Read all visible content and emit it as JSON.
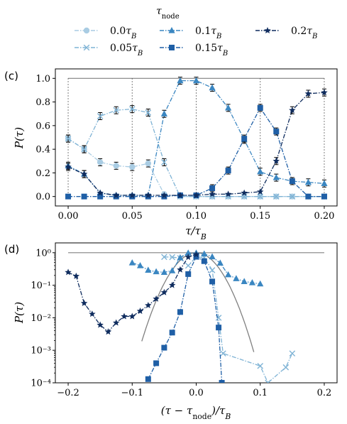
{
  "legend": {
    "title": "τ_node",
    "entries": [
      "0.0τ_B",
      "0.05τ_B",
      "0.1τ_B",
      "0.15τ_B",
      "0.2τ_B"
    ]
  },
  "chart_data": [
    {
      "type": "line",
      "panel_label": "(c)",
      "xlabel": "τ/τ_B",
      "ylabel": "P(τ)",
      "xlim": [
        -0.01,
        0.21
      ],
      "ylim": [
        -0.08,
        1.08
      ],
      "xticks": [
        "0.00",
        "0.05",
        "0.10",
        "0.15",
        "0.20"
      ],
      "yticks": [
        "0.0",
        "0.2",
        "0.4",
        "0.6",
        "0.8",
        "1.0"
      ],
      "x": [
        0,
        0.0125,
        0.025,
        0.0375,
        0.05,
        0.0625,
        0.075,
        0.0875,
        0.1,
        0.1125,
        0.125,
        0.1375,
        0.15,
        0.1625,
        0.175,
        0.1875,
        0.2
      ],
      "series": [
        {
          "name": "0.0τ_B",
          "color": "#a9cce3",
          "marker": "circle",
          "values": [
            0.49,
            0.4,
            0.29,
            0.26,
            0.25,
            0.28,
            0.02,
            0.0,
            0.0,
            0.0,
            0.0,
            0.0,
            0.0,
            0.0,
            0.0,
            0.0,
            0.0
          ]
        },
        {
          "name": "0.05τ_B",
          "color": "#7fb3d5",
          "marker": "x",
          "values": [
            0.49,
            0.4,
            0.68,
            0.73,
            0.74,
            0.71,
            0.29,
            0.0,
            0.0,
            0.0,
            0.0,
            0.0,
            0.0,
            0.0,
            0.0,
            0.0,
            0.0
          ]
        },
        {
          "name": "0.1τ_B",
          "color": "#3a86c1",
          "marker": "triangle",
          "values": [
            0.26,
            0.19,
            0.03,
            0.01,
            0.01,
            0.01,
            0.7,
            0.98,
            0.98,
            0.92,
            0.75,
            0.48,
            0.21,
            0.16,
            0.13,
            0.12,
            0.11
          ]
        },
        {
          "name": "0.15τ_B",
          "color": "#1f5fa6",
          "marker": "square",
          "values": [
            0.0,
            0.0,
            0.0,
            0.0,
            0.0,
            0.0,
            0.0,
            0.01,
            0.01,
            0.07,
            0.22,
            0.49,
            0.75,
            0.55,
            0.13,
            0.0,
            0.0
          ]
        },
        {
          "name": "0.2τ_B",
          "color": "#0f2c5e",
          "marker": "star",
          "values": [
            0.25,
            0.19,
            0.03,
            0.01,
            0.01,
            0.01,
            0.01,
            0.01,
            0.01,
            0.02,
            0.02,
            0.03,
            0.04,
            0.3,
            0.73,
            0.87,
            0.88
          ]
        }
      ],
      "reference_line": {
        "color": "#808080",
        "level": 1.0,
        "dotted_x": [
          0.0,
          0.05,
          0.1,
          0.15,
          0.2
        ]
      }
    },
    {
      "type": "line",
      "panel_label": "(d)",
      "xlabel": "(τ − τ_node)/τ_B",
      "ylabel": "P(τ)",
      "yscale": "log",
      "xlim": [
        -0.22,
        0.22
      ],
      "ylim": [
        0.0001,
        2.0
      ],
      "xticks": [
        "−0.2",
        "−0.1",
        "0.0",
        "0.1",
        "0.2"
      ],
      "yticks": [
        "10⁻⁴",
        "10⁻³",
        "10⁻²",
        "10⁻¹",
        "10⁰"
      ],
      "series": [
        {
          "name": "0.05τ_B",
          "color": "#7fb3d5",
          "marker": "x",
          "points": [
            [
              -0.05,
              0.74
            ],
            [
              -0.0375,
              0.73
            ],
            [
              -0.025,
              0.68
            ],
            [
              -0.0125,
              0.4
            ],
            [
              0.0,
              0.74
            ],
            [
              0.0125,
              0.71
            ],
            [
              0.025,
              0.29
            ],
            [
              0.035,
              0.01
            ],
            [
              0.042,
              0.0008
            ],
            [
              0.1,
              0.00033
            ],
            [
              0.112,
              0.0001
            ],
            [
              0.14,
              0.0003
            ],
            [
              0.15,
              0.0008
            ]
          ]
        },
        {
          "name": "0.1τ_B",
          "color": "#3a86c1",
          "marker": "triangle",
          "points": [
            [
              -0.1,
              0.49
            ],
            [
              -0.0875,
              0.4
            ],
            [
              -0.075,
              0.29
            ],
            [
              -0.0625,
              0.26
            ],
            [
              -0.05,
              0.25
            ],
            [
              -0.0375,
              0.28
            ],
            [
              -0.025,
              0.7
            ],
            [
              -0.0125,
              0.98
            ],
            [
              0.0,
              0.98
            ],
            [
              0.0125,
              0.92
            ],
            [
              0.025,
              0.75
            ],
            [
              0.0375,
              0.48
            ],
            [
              0.05,
              0.21
            ],
            [
              0.0625,
              0.16
            ],
            [
              0.075,
              0.13
            ],
            [
              0.0875,
              0.12
            ],
            [
              0.1,
              0.11
            ]
          ]
        },
        {
          "name": "0.15τ_B",
          "color": "#1f5fa6",
          "marker": "square",
          "points": [
            [
              -0.075,
              0.00013
            ],
            [
              -0.0625,
              0.0004
            ],
            [
              -0.05,
              0.0012
            ],
            [
              -0.0375,
              0.0035
            ],
            [
              -0.025,
              0.015
            ],
            [
              -0.0125,
              0.22
            ],
            [
              0.0,
              0.75
            ],
            [
              0.0125,
              0.55
            ],
            [
              0.025,
              0.13
            ],
            [
              0.035,
              0.005
            ],
            [
              0.04,
              0.0001
            ]
          ]
        },
        {
          "name": "0.2τ_B",
          "color": "#0f2c5e",
          "marker": "star",
          "points": [
            [
              -0.2,
              0.25
            ],
            [
              -0.1875,
              0.19
            ],
            [
              -0.175,
              0.028
            ],
            [
              -0.1625,
              0.013
            ],
            [
              -0.15,
              0.006
            ],
            [
              -0.1375,
              0.0037
            ],
            [
              -0.125,
              0.007
            ],
            [
              -0.1125,
              0.011
            ],
            [
              -0.1,
              0.011
            ],
            [
              -0.0875,
              0.016
            ],
            [
              -0.075,
              0.024
            ],
            [
              -0.0625,
              0.038
            ],
            [
              -0.05,
              0.06
            ],
            [
              -0.0375,
              0.1
            ],
            [
              -0.025,
              0.3
            ],
            [
              -0.0125,
              0.73
            ],
            [
              0.0,
              0.88
            ]
          ]
        }
      ],
      "reference_line": {
        "color": "#808080",
        "level": 1.0
      },
      "gaussian_curve": {
        "color": "#808080",
        "center": 0.0,
        "sigma": 0.024,
        "x_range": [
          -0.085,
          0.09
        ]
      }
    }
  ]
}
